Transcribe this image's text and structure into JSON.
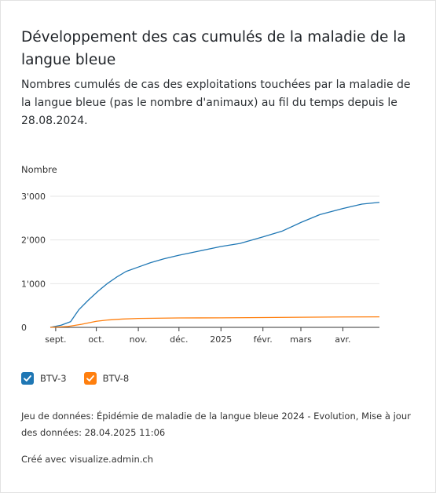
{
  "title": "Développement des cas cumulés de la maladie de la langue bleue",
  "description": "Nombres cumulés de cas des exploitations touchées par la maladie de la langue bleue (pas le nombre d'animaux) au fil du temps depuis le 28.08.2024.",
  "footer": {
    "dataset": "Jeu de données: Épidémie de maladie de la langue bleue 2024 - Evolution, Mise à jour des données: 28.04.2025 11:06",
    "created": "Créé avec visualize.admin.ch"
  },
  "colors": {
    "btv3": "#1f77b4",
    "btv8": "#ff7f0e",
    "grid": "#e6e6e6",
    "axis": "#333333",
    "text": "#333333"
  },
  "legend": [
    {
      "label": "BTV-3",
      "color": "#1f77b4",
      "checked": true,
      "icon": "check-icon"
    },
    {
      "label": "BTV-8",
      "color": "#ff7f0e",
      "checked": true,
      "icon": "check-icon"
    }
  ],
  "chart_data": {
    "type": "line",
    "ylabel": "Nombre",
    "xlabel": "",
    "ylim": [
      0,
      3000
    ],
    "xlim": [
      "2024-08-28",
      "2025-04-28"
    ],
    "yticks": [
      0,
      1000,
      2000,
      3000
    ],
    "ytick_labels": [
      "0",
      "1'000",
      "2'000",
      "3'000"
    ],
    "xticks": [
      "2024-09-01",
      "2024-10-01",
      "2024-11-01",
      "2024-12-01",
      "2025-01-01",
      "2025-02-01",
      "2025-03-01",
      "2025-04-01"
    ],
    "xtick_labels": [
      "sept.",
      "oct.",
      "nov.",
      "déc.",
      "2025",
      "févr.",
      "mars",
      "avr."
    ],
    "grid": true,
    "legend_position": "bottom-left",
    "series": [
      {
        "name": "BTV-3",
        "color": "#1f77b4",
        "points": [
          [
            "2024-08-28",
            0
          ],
          [
            "2024-09-05",
            50
          ],
          [
            "2024-09-12",
            130
          ],
          [
            "2024-09-18",
            400
          ],
          [
            "2024-09-25",
            620
          ],
          [
            "2024-10-02",
            820
          ],
          [
            "2024-10-09",
            1000
          ],
          [
            "2024-10-16",
            1150
          ],
          [
            "2024-10-23",
            1280
          ],
          [
            "2024-11-01",
            1380
          ],
          [
            "2024-11-10",
            1480
          ],
          [
            "2024-11-20",
            1570
          ],
          [
            "2024-12-01",
            1650
          ],
          [
            "2024-12-15",
            1740
          ],
          [
            "2025-01-01",
            1850
          ],
          [
            "2025-01-15",
            1920
          ],
          [
            "2025-02-01",
            2070
          ],
          [
            "2025-02-15",
            2200
          ],
          [
            "2025-03-01",
            2400
          ],
          [
            "2025-03-15",
            2580
          ],
          [
            "2025-04-01",
            2720
          ],
          [
            "2025-04-15",
            2820
          ],
          [
            "2025-04-28",
            2860
          ]
        ]
      },
      {
        "name": "BTV-8",
        "color": "#ff7f0e",
        "points": [
          [
            "2024-08-28",
            0
          ],
          [
            "2024-09-10",
            20
          ],
          [
            "2024-09-20",
            70
          ],
          [
            "2024-10-01",
            140
          ],
          [
            "2024-10-10",
            170
          ],
          [
            "2024-10-20",
            190
          ],
          [
            "2024-11-01",
            205
          ],
          [
            "2024-12-01",
            215
          ],
          [
            "2025-01-01",
            218
          ],
          [
            "2025-02-01",
            225
          ],
          [
            "2025-03-01",
            232
          ],
          [
            "2025-04-01",
            238
          ],
          [
            "2025-04-28",
            240
          ]
        ]
      }
    ]
  }
}
